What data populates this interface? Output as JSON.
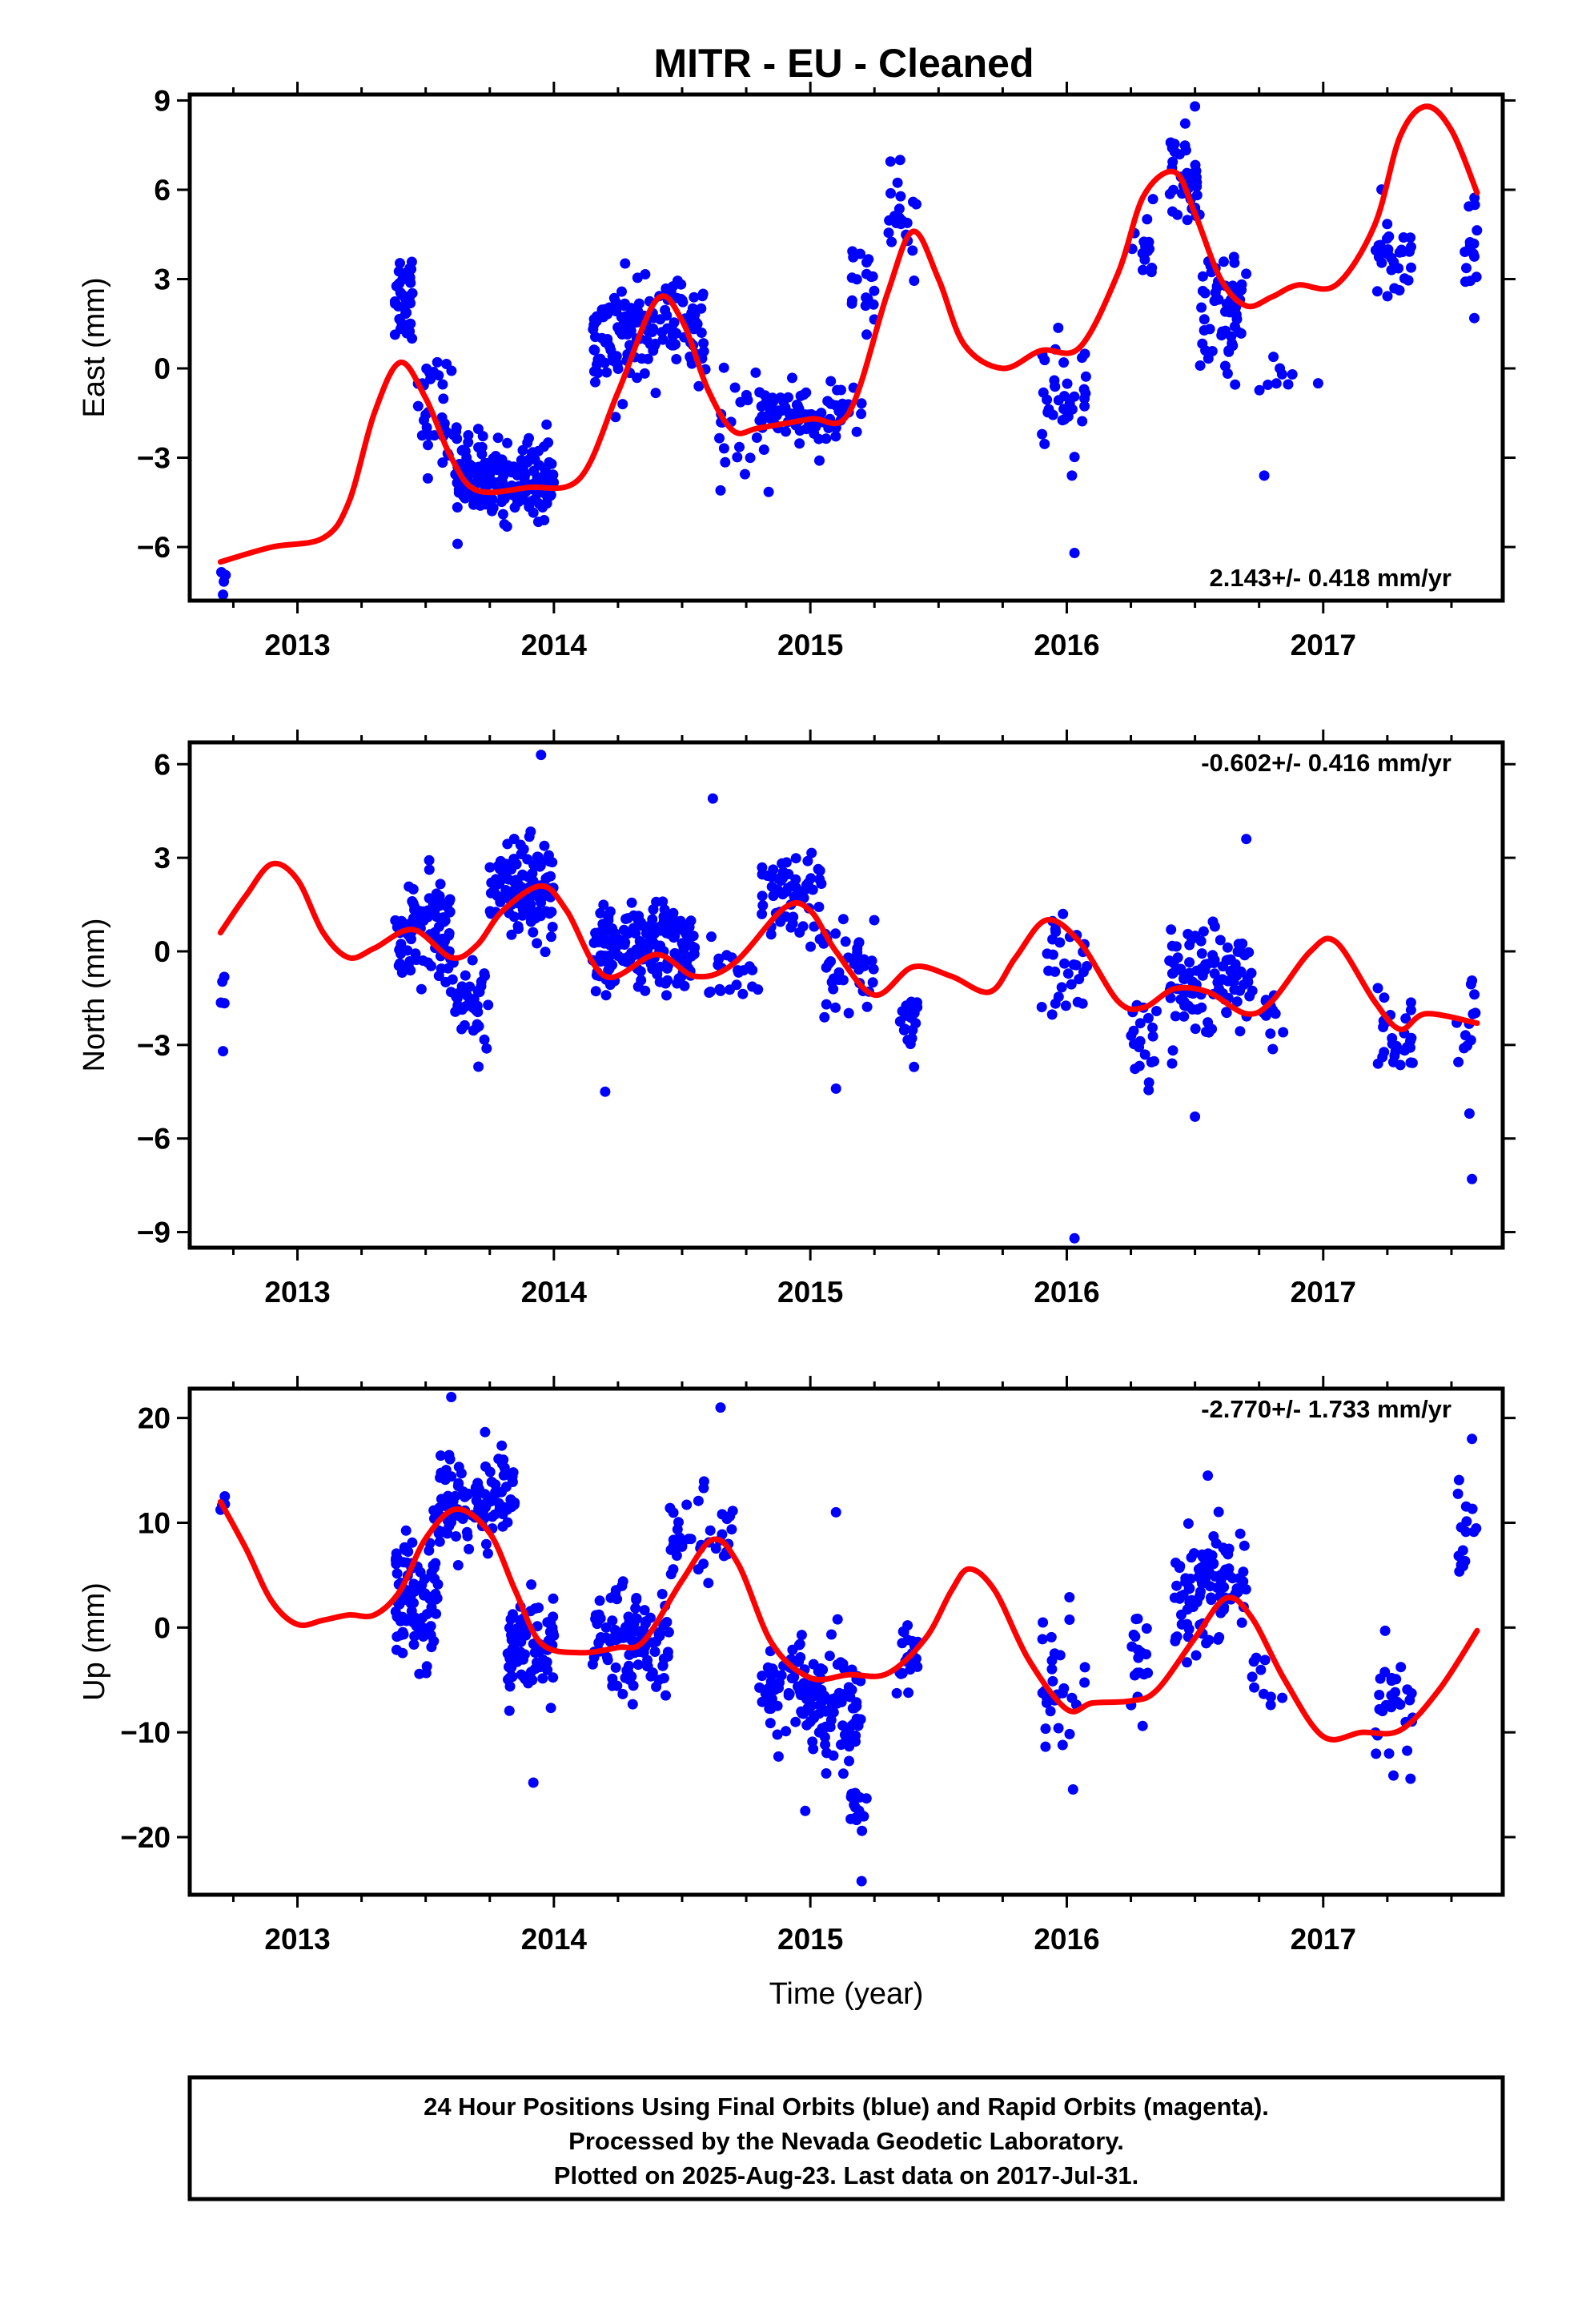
{
  "title": "MITR  - EU - Cleaned",
  "colors": {
    "points": "#0000ff",
    "fit": "#ff0000",
    "frame": "#000000"
  },
  "footer": {
    "lines": [
      "24 Hour Positions Using Final Orbits (blue) and Rapid Orbits (magenta).",
      "Processed by the Nevada Geodetic Laboratory.",
      "Plotted on 2025-Aug-23. Last data on 2017-Jul-31."
    ]
  },
  "chart_data": [
    {
      "type": "scatter",
      "name": "East",
      "ylabel": "East (mm)",
      "xlabel": "",
      "rate_label": "2.143+/- 0.418 mm/yr",
      "rate_position": "bottom-right",
      "xlim": [
        2012.58,
        2017.7
      ],
      "ylim": [
        -7.8,
        9.2
      ],
      "xticks": [
        2013,
        2014,
        2015,
        2016,
        2017
      ],
      "yticks": [
        -6,
        -3,
        0,
        3,
        6,
        9
      ],
      "clusters": [
        [
          2012.7,
          2012.72,
          -6.8,
          0.5,
          4
        ],
        [
          2013.38,
          2013.45,
          2.5,
          1.2,
          40
        ],
        [
          2013.45,
          2013.62,
          -1.5,
          1.3,
          35
        ],
        [
          2013.62,
          2014.0,
          -3.7,
          0.9,
          190
        ],
        [
          2014.15,
          2014.3,
          1.0,
          1.3,
          60
        ],
        [
          2014.3,
          2014.6,
          1.2,
          1.2,
          90
        ],
        [
          2014.62,
          2014.85,
          -2.0,
          1.2,
          25
        ],
        [
          2014.8,
          2015.2,
          -1.5,
          0.8,
          80
        ],
        [
          2015.15,
          2015.25,
          2.5,
          1.3,
          20
        ],
        [
          2015.3,
          2015.42,
          4.8,
          1.0,
          20
        ],
        [
          2015.9,
          2016.08,
          -0.8,
          1.3,
          35
        ],
        [
          2016.25,
          2016.35,
          4.0,
          1.0,
          15
        ],
        [
          2016.4,
          2016.52,
          6.3,
          1.1,
          35
        ],
        [
          2016.52,
          2016.7,
          2.0,
          1.5,
          60
        ],
        [
          2016.75,
          2016.9,
          -0.4,
          0.5,
          8
        ],
        [
          2017.2,
          2017.35,
          3.8,
          1.0,
          30
        ],
        [
          2017.55,
          2017.6,
          3.6,
          1.3,
          15
        ]
      ],
      "outliers": [
        [
          2012.71,
          -7.6
        ],
        [
          2016.03,
          -6.2
        ],
        [
          2016.02,
          -3.6
        ],
        [
          2016.77,
          -3.6
        ],
        [
          2014.65,
          -4.1
        ],
        [
          2015.35,
          7.0
        ],
        [
          2016.5,
          8.8
        ],
        [
          2016.98,
          -0.5
        ]
      ],
      "fit": {
        "x": [
          2012.7,
          2012.9,
          2013.1,
          2013.2,
          2013.3,
          2013.4,
          2013.5,
          2013.6,
          2013.7,
          2013.9,
          2014.1,
          2014.25,
          2014.4,
          2014.5,
          2014.6,
          2014.7,
          2014.8,
          2015.0,
          2015.15,
          2015.3,
          2015.4,
          2015.5,
          2015.6,
          2015.75,
          2015.9,
          2016.05,
          2016.2,
          2016.3,
          2016.42,
          2016.5,
          2016.6,
          2016.7,
          2016.8,
          2016.9,
          2017.05,
          2017.2,
          2017.3,
          2017.4,
          2017.5,
          2017.6
        ],
        "y": [
          -6.5,
          -6.0,
          -5.7,
          -4.5,
          -1.5,
          0.2,
          -1.0,
          -3.0,
          -4.1,
          -4.0,
          -3.7,
          -0.8,
          2.3,
          1.6,
          -0.7,
          -2.1,
          -2.0,
          -1.7,
          -1.5,
          2.5,
          4.6,
          3.0,
          0.8,
          0.0,
          0.6,
          0.7,
          3.2,
          5.8,
          6.6,
          5.2,
          3.0,
          2.1,
          2.4,
          2.8,
          2.8,
          4.8,
          7.8,
          8.8,
          8.0,
          5.9
        ]
      }
    },
    {
      "type": "scatter",
      "name": "North",
      "ylabel": "North (mm)",
      "xlabel": "",
      "rate_label": "-0.602+/- 0.416 mm/yr",
      "rate_position": "top-right",
      "xlim": [
        2012.58,
        2017.7
      ],
      "ylim": [
        -9.5,
        6.7
      ],
      "xticks": [
        2013,
        2014,
        2015,
        2016,
        2017
      ],
      "yticks": [
        -9,
        -6,
        -3,
        0,
        3,
        6
      ],
      "clusters": [
        [
          2012.7,
          2012.72,
          -0.9,
          0.6,
          4
        ],
        [
          2013.38,
          2013.6,
          0.6,
          1.3,
          90
        ],
        [
          2013.6,
          2013.75,
          -1.5,
          1.1,
          40
        ],
        [
          2013.75,
          2014.0,
          2.0,
          1.1,
          120
        ],
        [
          2014.15,
          2014.55,
          0.0,
          1.0,
          180
        ],
        [
          2014.6,
          2014.8,
          -0.5,
          1.0,
          20
        ],
        [
          2014.8,
          2015.05,
          1.8,
          0.9,
          60
        ],
        [
          2015.05,
          2015.25,
          -0.5,
          1.0,
          40
        ],
        [
          2015.35,
          2015.42,
          -2.2,
          0.9,
          20
        ],
        [
          2015.9,
          2016.08,
          -1.0,
          1.4,
          30
        ],
        [
          2016.25,
          2016.35,
          -2.8,
          0.9,
          20
        ],
        [
          2016.4,
          2016.72,
          -0.8,
          1.2,
          110
        ],
        [
          2016.72,
          2016.85,
          -1.9,
          0.6,
          12
        ],
        [
          2017.2,
          2017.35,
          -2.8,
          1.0,
          30
        ],
        [
          2017.52,
          2017.6,
          -2.5,
          1.2,
          12
        ]
      ],
      "outliers": [
        [
          2012.71,
          -3.2
        ],
        [
          2014.62,
          4.9
        ],
        [
          2013.95,
          6.3
        ],
        [
          2014.2,
          -4.5
        ],
        [
          2015.1,
          -4.4
        ],
        [
          2016.03,
          -9.2
        ],
        [
          2016.7,
          3.6
        ],
        [
          2017.58,
          -7.3
        ],
        [
          2017.57,
          -5.2
        ],
        [
          2016.5,
          -5.3
        ]
      ],
      "fit": {
        "x": [
          2012.7,
          2012.8,
          2012.9,
          2013.0,
          2013.1,
          2013.2,
          2013.3,
          2013.45,
          2013.6,
          2013.7,
          2013.8,
          2013.95,
          2014.05,
          2014.2,
          2014.4,
          2014.55,
          2014.7,
          2014.9,
          2015.0,
          2015.1,
          2015.25,
          2015.4,
          2015.55,
          2015.7,
          2015.8,
          2015.92,
          2016.05,
          2016.2,
          2016.3,
          2016.42,
          2016.55,
          2016.7,
          2016.8,
          2016.95,
          2017.05,
          2017.2,
          2017.3,
          2017.4,
          2017.6
        ],
        "y": [
          0.6,
          1.8,
          2.8,
          2.3,
          0.6,
          -0.2,
          0.1,
          0.7,
          -0.2,
          0.2,
          1.3,
          2.1,
          1.3,
          -0.8,
          -0.1,
          -0.8,
          -0.4,
          1.4,
          1.3,
          0.0,
          -1.4,
          -0.5,
          -0.8,
          -1.3,
          -0.2,
          1.0,
          0.3,
          -1.6,
          -1.8,
          -1.2,
          -1.3,
          -2.0,
          -1.6,
          0.0,
          0.3,
          -1.6,
          -2.5,
          -2.0,
          -2.3
        ]
      }
    },
    {
      "type": "scatter",
      "name": "Up",
      "ylabel": "Up (mm)",
      "xlabel": "Time (year)",
      "rate_label": "-2.770+/- 1.733 mm/yr",
      "rate_position": "top-right",
      "xlim": [
        2012.58,
        2017.7
      ],
      "ylim": [
        -25.5,
        22.8
      ],
      "xticks": [
        2013,
        2014,
        2015,
        2016,
        2017
      ],
      "yticks": [
        -20,
        -10,
        0,
        10,
        20
      ],
      "clusters": [
        [
          2012.7,
          2012.72,
          11.5,
          1.2,
          4
        ],
        [
          2013.38,
          2013.55,
          3.0,
          4.5,
          90
        ],
        [
          2013.55,
          2013.85,
          12.0,
          3.5,
          110
        ],
        [
          2013.82,
          2014.0,
          -2.0,
          3.5,
          90
        ],
        [
          2014.15,
          2014.45,
          -1.5,
          4.0,
          110
        ],
        [
          2014.45,
          2014.7,
          8.0,
          3.5,
          40
        ],
        [
          2014.8,
          2014.98,
          -6.0,
          3.0,
          60
        ],
        [
          2014.98,
          2015.2,
          -8.0,
          4.0,
          90
        ],
        [
          2015.15,
          2015.22,
          -18.0,
          3.0,
          14
        ],
        [
          2015.33,
          2015.42,
          -3.0,
          2.5,
          20
        ],
        [
          2015.9,
          2016.08,
          -5.0,
          4.5,
          30
        ],
        [
          2016.25,
          2016.32,
          -3.5,
          3.5,
          18
        ],
        [
          2016.42,
          2016.7,
          4.0,
          4.0,
          100
        ],
        [
          2016.72,
          2016.9,
          -4.0,
          3.0,
          10
        ],
        [
          2017.2,
          2017.35,
          -7.0,
          4.0,
          30
        ],
        [
          2017.52,
          2017.6,
          10.0,
          3.5,
          15
        ]
      ],
      "outliers": [
        [
          2013.6,
          22.0
        ],
        [
          2014.65,
          21.0
        ],
        [
          2013.92,
          -14.8
        ],
        [
          2015.2,
          -24.2
        ],
        [
          2015.1,
          11.0
        ],
        [
          2016.55,
          14.5
        ],
        [
          2017.58,
          18.0
        ],
        [
          2014.98,
          -17.5
        ]
      ],
      "fit": {
        "x": [
          2012.7,
          2012.8,
          2012.9,
          2013.0,
          2013.1,
          2013.2,
          2013.3,
          2013.4,
          2013.5,
          2013.62,
          2013.75,
          2013.85,
          2013.95,
          2014.1,
          2014.25,
          2014.35,
          2014.5,
          2014.62,
          2014.72,
          2014.85,
          2015.0,
          2015.15,
          2015.3,
          2015.45,
          2015.55,
          2015.62,
          2015.72,
          2015.85,
          2016.0,
          2016.1,
          2016.25,
          2016.35,
          2016.5,
          2016.62,
          2016.72,
          2016.85,
          2017.0,
          2017.15,
          2017.3,
          2017.45,
          2017.6
        ],
        "y": [
          12.0,
          7.5,
          2.5,
          0.3,
          0.7,
          1.2,
          1.2,
          3.5,
          8.5,
          11.3,
          9.0,
          3.5,
          -1.5,
          -2.4,
          -1.9,
          -1.3,
          4.5,
          8.4,
          6.0,
          -1.5,
          -4.8,
          -4.5,
          -4.4,
          -1.0,
          3.5,
          5.6,
          3.5,
          -3.0,
          -7.8,
          -7.2,
          -7.0,
          -6.0,
          -1.0,
          2.8,
          1.0,
          -5.0,
          -10.4,
          -10.0,
          -9.8,
          -6.0,
          -0.3
        ]
      }
    }
  ]
}
